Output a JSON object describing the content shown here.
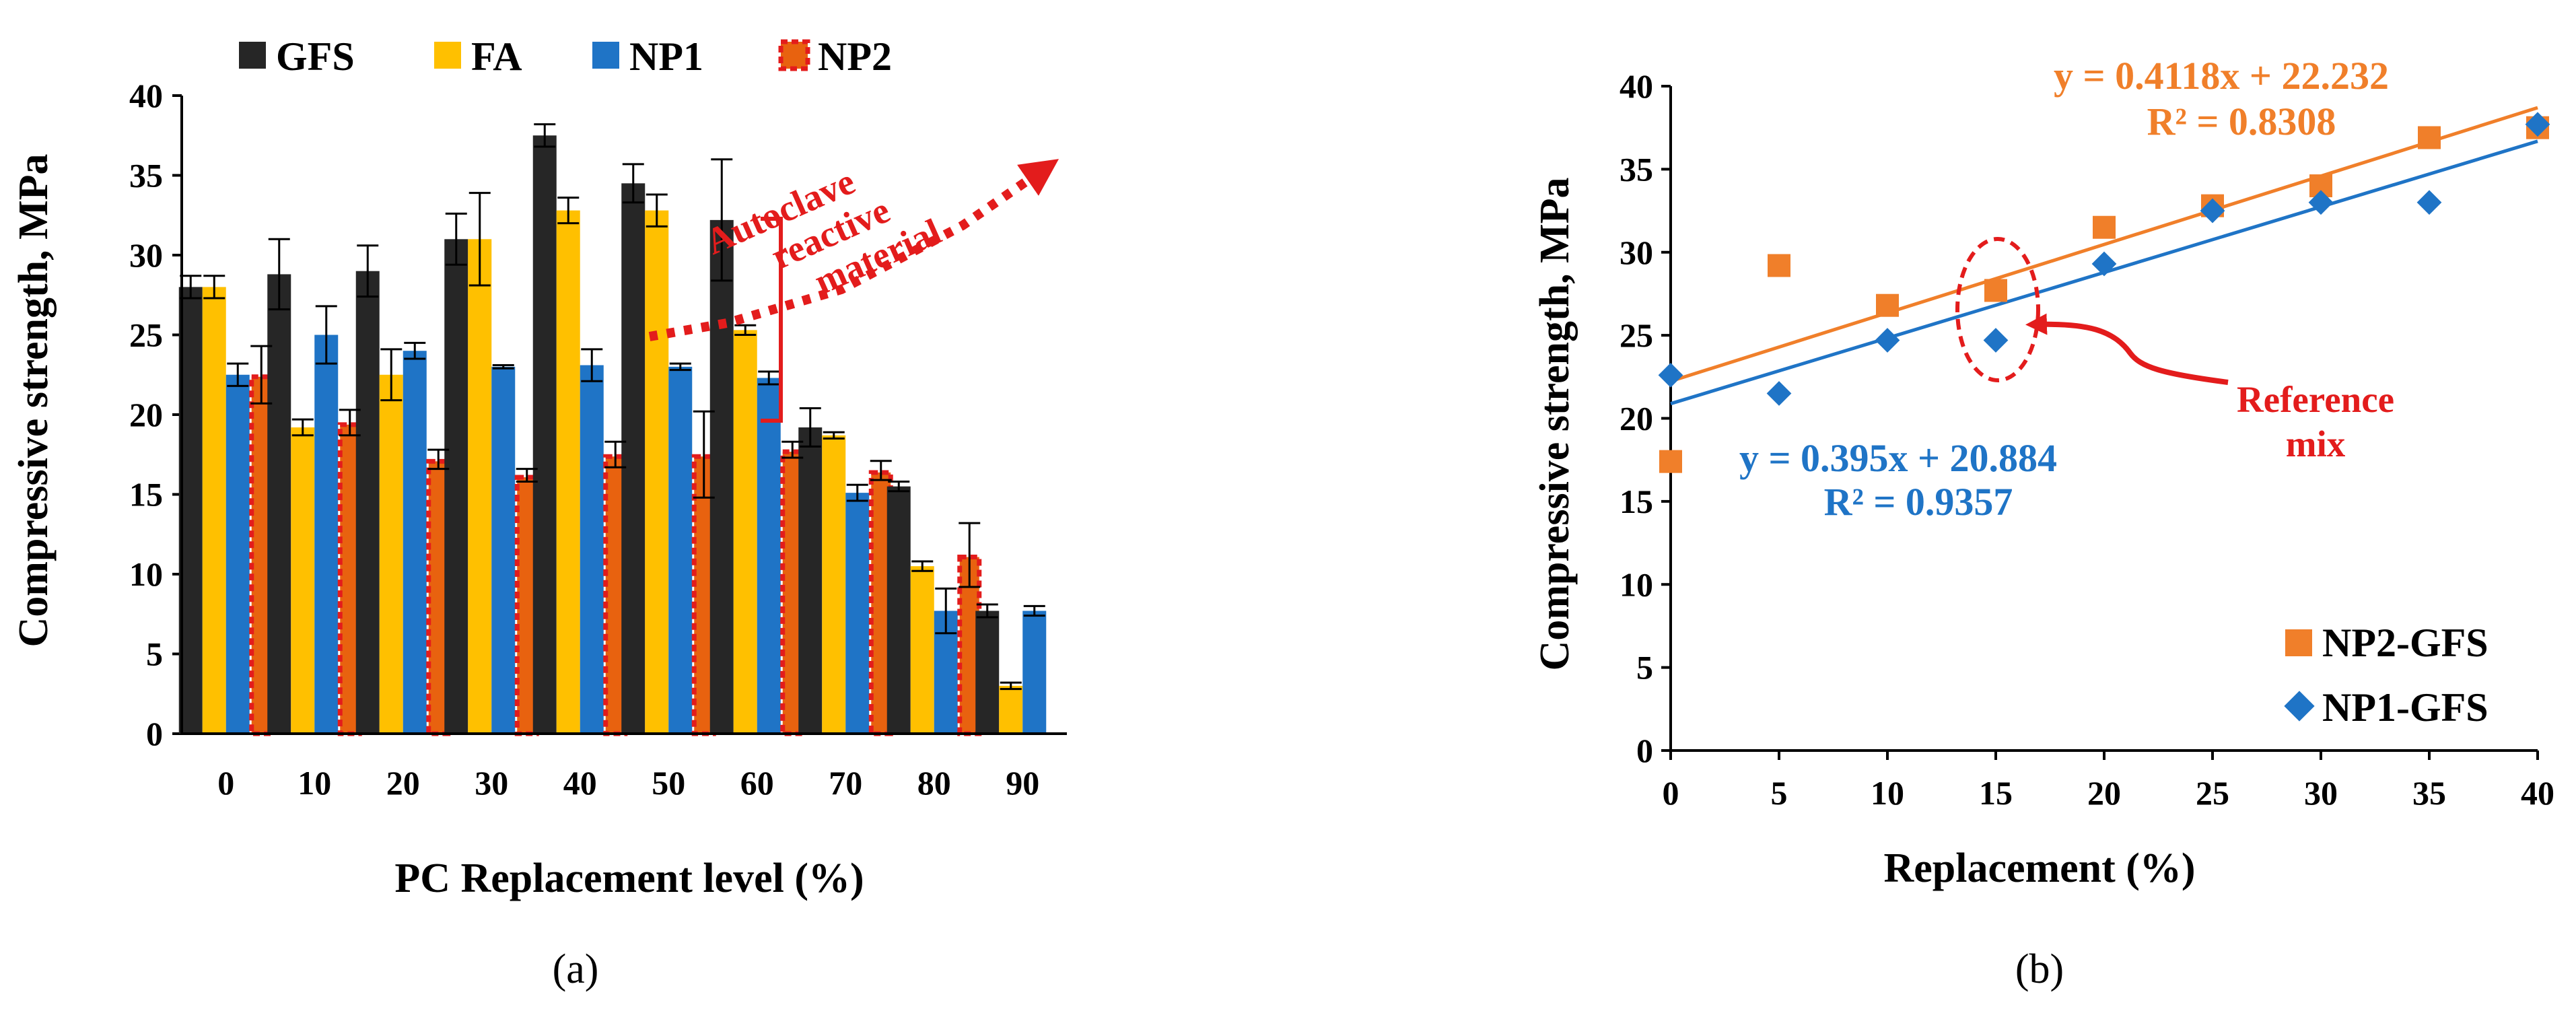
{
  "chart_data": [
    {
      "panel": "a",
      "type": "bar",
      "panel_label": "(a)",
      "xlabel": "PC Replacement level (%)",
      "ylabel": "Compressive strength, MPa",
      "categories": [
        "0",
        "10",
        "20",
        "30",
        "40",
        "50",
        "60",
        "70",
        "80",
        "90"
      ],
      "ylim": [
        0,
        40
      ],
      "yticks": [
        "0",
        "5",
        "10",
        "15",
        "20",
        "25",
        "30",
        "35",
        "40"
      ],
      "legend_position": "top",
      "series": [
        {
          "name": "GFS",
          "color": "#262626",
          "values": [
            28.0,
            28.8,
            29.0,
            31.0,
            37.5,
            34.5,
            32.2,
            19.2,
            15.5,
            7.7
          ],
          "errors": [
            0.7,
            2.2,
            1.6,
            1.6,
            0.7,
            1.2,
            3.8,
            1.2,
            0.3,
            0.4
          ]
        },
        {
          "name": "FA",
          "color": "#FFC000",
          "values": [
            28.0,
            19.2,
            22.5,
            31.0,
            32.8,
            32.8,
            25.3,
            18.7,
            10.5,
            3.0
          ],
          "errors": [
            0.7,
            0.5,
            1.6,
            2.9,
            0.8,
            1.0,
            0.3,
            0.2,
            0.3,
            0.2
          ]
        },
        {
          "name": "NP1",
          "color": "#1F74C6",
          "values": [
            22.5,
            25.0,
            24.0,
            23.0,
            23.1,
            23.0,
            22.3,
            15.1,
            7.7,
            7.7
          ],
          "errors": [
            0.7,
            1.8,
            0.5,
            0.1,
            1.0,
            0.2,
            0.4,
            0.5,
            1.4,
            0.3
          ]
        },
        {
          "name": "NP2",
          "color": "#E31C1C",
          "values": [
            22.5,
            19.5,
            17.2,
            16.2,
            17.5,
            17.5,
            17.8,
            16.5,
            11.2,
            null
          ],
          "errors": [
            1.8,
            0.8,
            0.6,
            0.4,
            0.8,
            2.7,
            0.5,
            0.6,
            2.0,
            null
          ]
        }
      ],
      "annotation": {
        "text_lines": [
          "Autoclave",
          "reactive",
          "material"
        ],
        "color": "#E31C1C"
      }
    },
    {
      "panel": "b",
      "type": "scatter",
      "panel_label": "(b)",
      "xlabel": "Replacement (%)",
      "ylabel": "Compressive strength, MPa",
      "xlim": [
        0,
        40
      ],
      "ylim": [
        0,
        40
      ],
      "xticks": [
        "0",
        "5",
        "10",
        "15",
        "20",
        "25",
        "30",
        "35",
        "40"
      ],
      "yticks": [
        "0",
        "5",
        "10",
        "15",
        "20",
        "25",
        "30",
        "35",
        "40"
      ],
      "legend_position": "bottom-right",
      "series": [
        {
          "name": "NP2-GFS",
          "color": "#F07F2A",
          "marker": "square",
          "x": [
            0,
            5,
            10,
            15,
            20,
            25,
            30,
            35,
            40
          ],
          "y": [
            17.4,
            29.2,
            26.8,
            27.7,
            31.5,
            32.8,
            34.0,
            36.9,
            37.5
          ],
          "trend": {
            "slope": 0.4118,
            "intercept": 22.232,
            "equation": "y = 0.4118x + 22.232",
            "r2": "R² = 0.8308"
          }
        },
        {
          "name": "NP1-GFS",
          "color": "#1F74C6",
          "marker": "diamond",
          "x": [
            0,
            5,
            10,
            15,
            20,
            25,
            30,
            35,
            40
          ],
          "y": [
            22.6,
            21.5,
            24.7,
            24.7,
            29.3,
            32.5,
            33.0,
            33.0,
            37.7
          ],
          "trend": {
            "slope": 0.395,
            "intercept": 20.884,
            "equation": "y = 0.395x + 20.884",
            "r2": "R² = 0.9357"
          }
        }
      ],
      "annotation": {
        "text_lines": [
          "Reference",
          "mix"
        ],
        "color": "#E31C1C"
      }
    }
  ]
}
